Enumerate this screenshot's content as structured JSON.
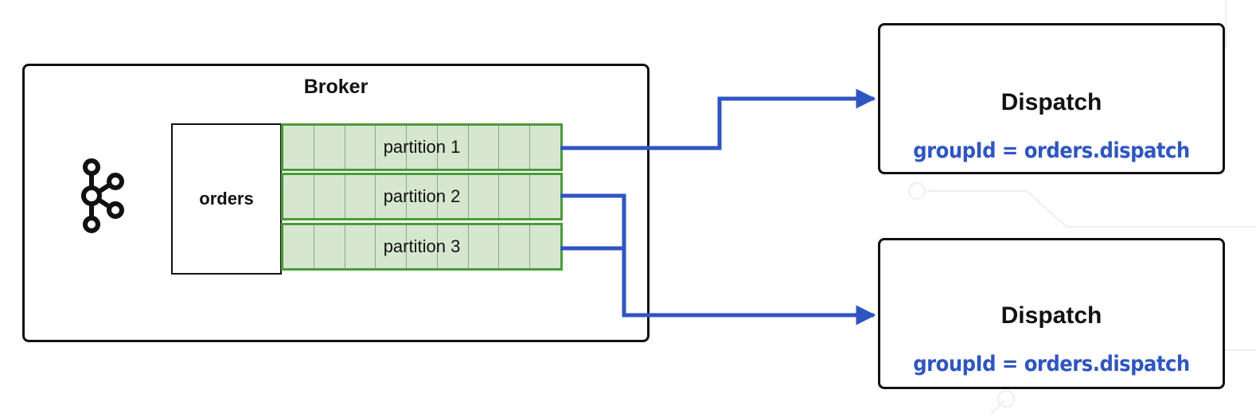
{
  "broker": {
    "title": "Broker",
    "icon": "kafka-icon"
  },
  "topic": {
    "name": "orders"
  },
  "partitions": [
    {
      "label": "partition 1"
    },
    {
      "label": "partition 2"
    },
    {
      "label": "partition 3"
    }
  ],
  "consumers": [
    {
      "title": "Dispatch",
      "group": "groupId = orders.dispatch"
    },
    {
      "title": "Dispatch",
      "group": "groupId = orders.dispatch"
    }
  ],
  "colors": {
    "arrow": "#2f56c0",
    "partition_fill": "#d6e6cf",
    "partition_border": "#4c9a3a",
    "group_text": "#2f56c0"
  }
}
